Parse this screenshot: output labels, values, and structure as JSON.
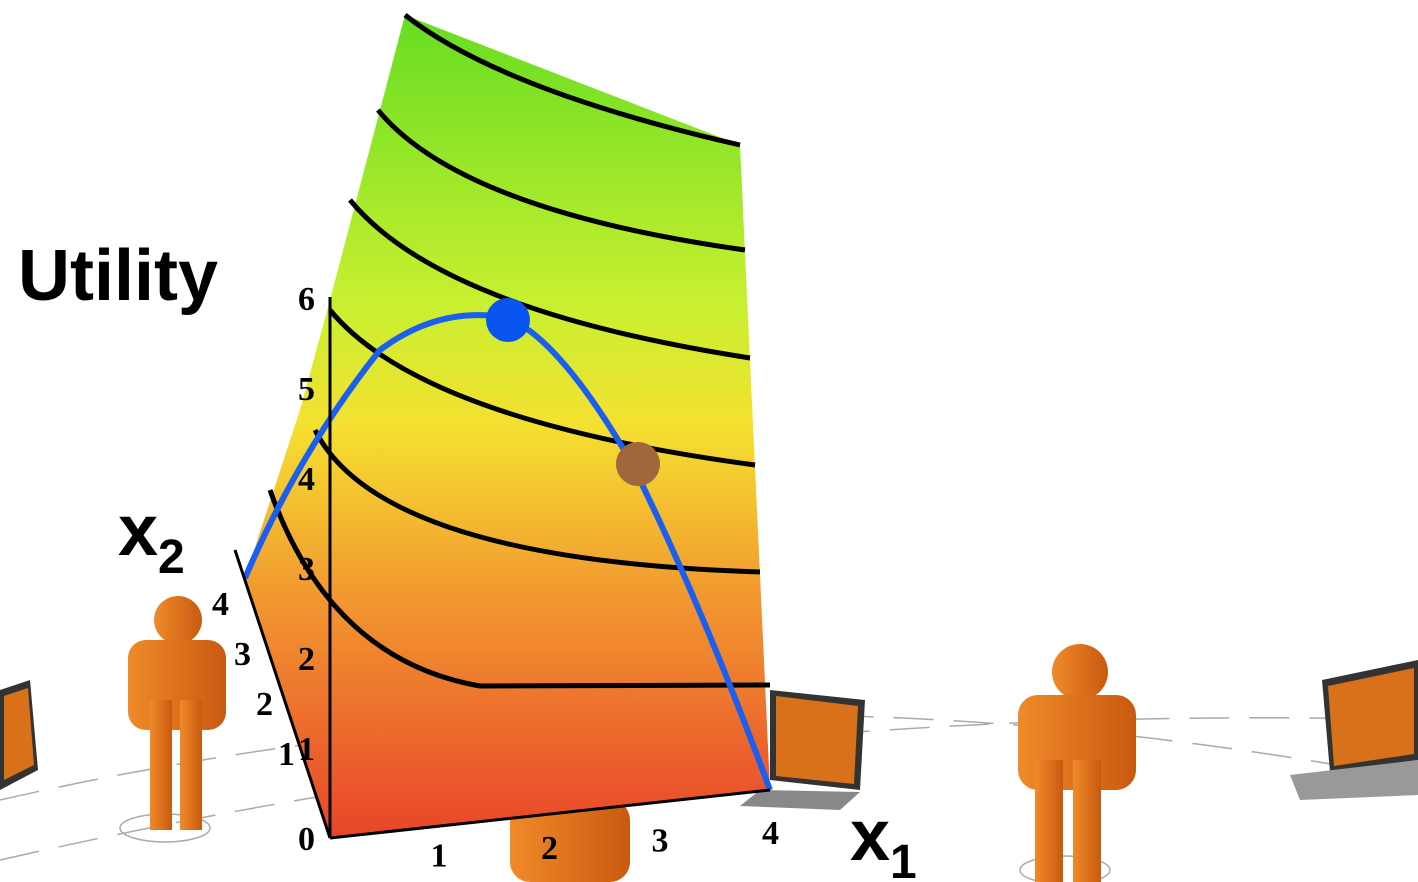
{
  "labels": {
    "utility": "Utility",
    "x1": {
      "base": "x",
      "sub": "1"
    },
    "x2": {
      "base": "x",
      "sub": "2"
    }
  },
  "axes": {
    "utility_ticks": [
      0,
      1,
      2,
      3,
      4,
      5,
      6
    ],
    "x1_ticks": [
      1,
      2,
      3,
      4
    ],
    "x2_ticks": [
      1,
      2,
      3,
      4
    ]
  }
}
